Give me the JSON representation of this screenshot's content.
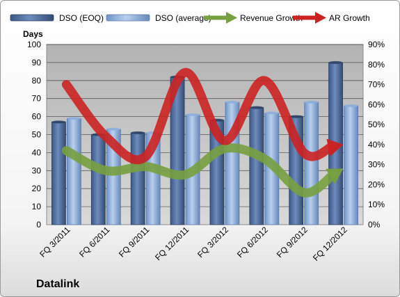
{
  "chart_data": {
    "type": "bar",
    "categories": [
      "FQ 3/2011",
      "FQ 6/2011",
      "FQ 9/2011",
      "FQ 12/2011",
      "FQ 3/2012",
      "FQ 6/2012",
      "FQ 9/2012",
      "FQ 12/2012"
    ],
    "series": [
      {
        "name": "DSO (EOQ)",
        "type": "bar",
        "axis": "left",
        "color": "#4f6b99",
        "values": [
          57,
          50,
          51,
          82,
          58,
          65,
          60,
          90
        ]
      },
      {
        "name": "DSO (average)",
        "type": "bar",
        "axis": "left",
        "color": "#8fb0dc",
        "values": [
          59,
          53,
          51,
          61,
          68,
          62,
          68,
          66
        ]
      },
      {
        "name": "Revenue Growth",
        "type": "arrow-line",
        "axis": "right",
        "color": "#77a03f",
        "values": [
          0.37,
          0.27,
          0.29,
          0.25,
          0.38,
          0.33,
          0.16,
          0.28
        ]
      },
      {
        "name": "AR Growth",
        "type": "arrow-line",
        "axis": "right",
        "color": "#cc2222",
        "values": [
          0.7,
          0.44,
          0.34,
          0.76,
          0.42,
          0.72,
          0.36,
          0.4
        ]
      }
    ],
    "left_axis": {
      "label": "Days",
      "min": 0,
      "max": 100,
      "step": 10,
      "ticks": [
        "0",
        "10",
        "20",
        "30",
        "40",
        "50",
        "60",
        "70",
        "80",
        "90",
        "100"
      ]
    },
    "right_axis": {
      "min": 0,
      "max": 0.9,
      "step": 0.1,
      "ticks": [
        "0%",
        "10%",
        "20%",
        "30%",
        "40%",
        "50%",
        "60%",
        "70%",
        "80%",
        "90%"
      ]
    },
    "legend_position": "top",
    "grid": true,
    "plot_background": "#c0c0c0",
    "brand": "Datalink"
  }
}
